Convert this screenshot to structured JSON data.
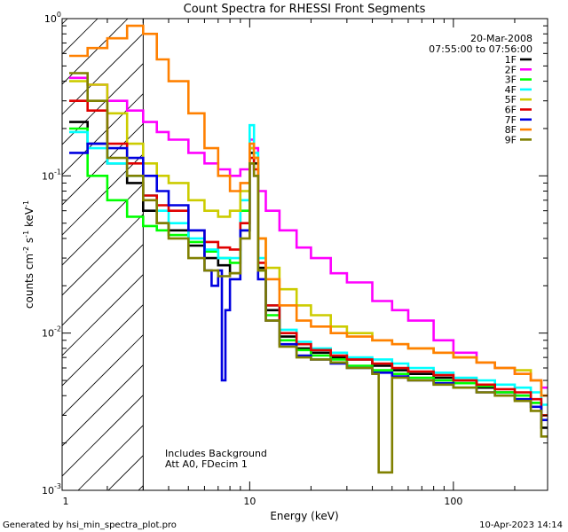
{
  "chart_data": {
    "type": "line",
    "title": "Count Spectra for RHESSI Front Segments",
    "xlabel": "Energy (keV)",
    "ylabel": "counts cm-2 s-1 keV-1",
    "xscale": "log",
    "yscale": "log",
    "xlim": [
      1.2,
      290
    ],
    "ylim": [
      0.001,
      1.0
    ],
    "x_ticks": [
      {
        "value": 1,
        "label": "1"
      },
      {
        "value": 10,
        "label": "10"
      },
      {
        "value": 100,
        "label": "100"
      }
    ],
    "y_ticks": [
      {
        "value": 1,
        "base": "10",
        "exp": "0"
      },
      {
        "value": 0.1,
        "base": "10",
        "exp": "-1"
      },
      {
        "value": 0.01,
        "base": "10",
        "exp": "-2"
      },
      {
        "value": 0.001,
        "base": "10",
        "exp": "-3"
      }
    ],
    "date": "20-Mar-2008",
    "time_range": "07:55:00 to 07:56:00",
    "annotation_lines": [
      "Includes Background",
      "Att A0, FDecim 1"
    ],
    "attenuator_cutoff_kev": 3.0,
    "series": [
      {
        "name": "1F",
        "color": "#000000",
        "x": [
          1.3,
          1.6,
          2.0,
          2.5,
          3.0,
          3.5,
          4.0,
          5.0,
          6.0,
          7.0,
          8.0,
          9.0,
          10.0,
          10.5,
          11.0,
          12.0,
          14.0,
          17.0,
          20.0,
          25.0,
          30.0,
          40.0,
          50.0,
          60.0,
          80.0,
          100.0,
          130.0,
          160.0,
          200.0,
          240.0,
          270.0
        ],
        "y": [
          0.22,
          0.16,
          0.12,
          0.09,
          0.06,
          0.05,
          0.045,
          0.036,
          0.03,
          0.027,
          0.024,
          0.045,
          0.14,
          0.12,
          0.026,
          0.014,
          0.0095,
          0.008,
          0.0075,
          0.007,
          0.0068,
          0.0062,
          0.0058,
          0.0055,
          0.0052,
          0.005,
          0.0045,
          0.0042,
          0.004,
          0.0036,
          0.0025
        ]
      },
      {
        "name": "2F",
        "color": "#ff00ff",
        "x": [
          1.3,
          1.6,
          2.0,
          2.5,
          3.0,
          3.5,
          4.0,
          5.0,
          6.0,
          7.0,
          8.0,
          9.0,
          10.0,
          10.5,
          11.0,
          12.0,
          14.0,
          17.0,
          20.0,
          25.0,
          30.0,
          40.0,
          50.0,
          60.0,
          80.0,
          100.0,
          130.0,
          160.0,
          200.0,
          240.0,
          270.0
        ],
        "y": [
          0.42,
          0.38,
          0.3,
          0.26,
          0.22,
          0.19,
          0.17,
          0.14,
          0.12,
          0.11,
          0.1,
          0.11,
          0.17,
          0.15,
          0.08,
          0.06,
          0.045,
          0.035,
          0.03,
          0.024,
          0.021,
          0.016,
          0.014,
          0.012,
          0.009,
          0.0075,
          0.0065,
          0.006,
          0.0055,
          0.005,
          0.0045
        ]
      },
      {
        "name": "3F",
        "color": "#00ff00",
        "x": [
          1.3,
          1.6,
          2.0,
          2.5,
          3.0,
          3.5,
          4.0,
          5.0,
          6.0,
          7.0,
          8.0,
          9.0,
          10.0,
          10.5,
          11.0,
          12.0,
          14.0,
          17.0,
          20.0,
          25.0,
          30.0,
          40.0,
          50.0,
          60.0,
          80.0,
          100.0,
          130.0,
          160.0,
          200.0,
          240.0,
          270.0
        ],
        "y": [
          0.2,
          0.1,
          0.07,
          0.055,
          0.048,
          0.045,
          0.042,
          0.038,
          0.033,
          0.03,
          0.028,
          0.06,
          0.15,
          0.13,
          0.025,
          0.013,
          0.009,
          0.0078,
          0.0072,
          0.0068,
          0.0062,
          0.0058,
          0.0055,
          0.0052,
          0.005,
          0.0048,
          0.0046,
          0.0042,
          0.004,
          0.0036,
          0.003
        ]
      },
      {
        "name": "4F",
        "color": "#00ffff",
        "x": [
          1.3,
          1.6,
          2.0,
          2.5,
          3.0,
          3.5,
          4.0,
          5.0,
          6.0,
          7.0,
          8.0,
          9.0,
          10.0,
          10.5,
          11.0,
          12.0,
          14.0,
          17.0,
          20.0,
          25.0,
          30.0,
          40.0,
          50.0,
          60.0,
          80.0,
          100.0,
          130.0,
          160.0,
          200.0,
          240.0,
          270.0
        ],
        "y": [
          0.19,
          0.15,
          0.12,
          0.1,
          0.075,
          0.06,
          0.05,
          0.04,
          0.034,
          0.03,
          0.03,
          0.07,
          0.21,
          0.14,
          0.03,
          0.015,
          0.0105,
          0.0088,
          0.008,
          0.0075,
          0.007,
          0.0068,
          0.0064,
          0.006,
          0.0056,
          0.0052,
          0.005,
          0.0047,
          0.0045,
          0.0042,
          0.0035
        ]
      },
      {
        "name": "5F",
        "color": "#cccc00",
        "x": [
          1.3,
          1.6,
          2.0,
          2.5,
          3.0,
          3.5,
          4.0,
          5.0,
          6.0,
          7.0,
          8.0,
          9.0,
          10.0,
          10.5,
          11.0,
          12.0,
          14.0,
          17.0,
          20.0,
          25.0,
          30.0,
          40.0,
          50.0,
          60.0,
          80.0,
          100.0,
          130.0,
          160.0,
          200.0,
          240.0,
          270.0
        ],
        "y": [
          0.4,
          0.38,
          0.25,
          0.16,
          0.12,
          0.1,
          0.09,
          0.07,
          0.06,
          0.055,
          0.06,
          0.08,
          0.15,
          0.13,
          0.04,
          0.026,
          0.019,
          0.015,
          0.013,
          0.011,
          0.01,
          0.009,
          0.0085,
          0.008,
          0.0075,
          0.007,
          0.0065,
          0.006,
          0.0058,
          0.005,
          0.004
        ]
      },
      {
        "name": "6F",
        "color": "#e00000",
        "x": [
          1.3,
          1.6,
          2.0,
          2.5,
          3.0,
          3.5,
          4.0,
          5.0,
          6.0,
          7.0,
          8.0,
          9.0,
          10.0,
          10.5,
          11.0,
          12.0,
          14.0,
          17.0,
          20.0,
          25.0,
          30.0,
          40.0,
          50.0,
          60.0,
          80.0,
          100.0,
          130.0,
          160.0,
          200.0,
          240.0,
          270.0
        ],
        "y": [
          0.3,
          0.26,
          0.16,
          0.12,
          0.075,
          0.065,
          0.06,
          0.045,
          0.038,
          0.035,
          0.034,
          0.05,
          0.13,
          0.11,
          0.028,
          0.015,
          0.01,
          0.0085,
          0.0078,
          0.0072,
          0.0068,
          0.0064,
          0.006,
          0.0057,
          0.0054,
          0.005,
          0.0047,
          0.0044,
          0.0042,
          0.0038,
          0.003
        ]
      },
      {
        "name": "7F",
        "color": "#0000e0",
        "x": [
          1.3,
          1.6,
          2.0,
          2.5,
          3.0,
          3.5,
          4.0,
          5.0,
          6.0,
          6.5,
          7.0,
          7.3,
          7.6,
          8.0,
          9.0,
          10.0,
          10.5,
          11.0,
          12.0,
          14.0,
          17.0,
          20.0,
          25.0,
          30.0,
          40.0,
          50.0,
          60.0,
          80.0,
          100.0,
          130.0,
          160.0,
          200.0,
          240.0,
          270.0
        ],
        "y": [
          0.14,
          0.16,
          0.15,
          0.13,
          0.1,
          0.08,
          0.065,
          0.045,
          0.025,
          0.02,
          0.025,
          0.005,
          0.014,
          0.022,
          0.045,
          0.12,
          0.1,
          0.022,
          0.012,
          0.0085,
          0.0072,
          0.0068,
          0.0064,
          0.006,
          0.0056,
          0.0053,
          0.005,
          0.0048,
          0.0045,
          0.0042,
          0.004,
          0.0038,
          0.0034,
          0.0028
        ]
      },
      {
        "name": "8F",
        "color": "#ff8000",
        "x": [
          1.3,
          1.6,
          2.0,
          2.5,
          3.0,
          3.5,
          4.0,
          5.0,
          6.0,
          7.0,
          8.0,
          9.0,
          10.0,
          10.5,
          11.0,
          12.0,
          14.0,
          17.0,
          20.0,
          25.0,
          30.0,
          40.0,
          50.0,
          60.0,
          80.0,
          100.0,
          130.0,
          160.0,
          200.0,
          240.0,
          270.0
        ],
        "y": [
          0.58,
          0.65,
          0.75,
          0.9,
          0.8,
          0.55,
          0.4,
          0.25,
          0.15,
          0.1,
          0.08,
          0.09,
          0.16,
          0.13,
          0.04,
          0.022,
          0.015,
          0.012,
          0.011,
          0.01,
          0.0095,
          0.009,
          0.0085,
          0.008,
          0.0075,
          0.007,
          0.0065,
          0.006,
          0.0055,
          0.005,
          0.004
        ]
      },
      {
        "name": "9F",
        "color": "#808000",
        "x": [
          1.3,
          1.6,
          2.0,
          2.5,
          3.0,
          3.5,
          4.0,
          5.0,
          6.0,
          7.0,
          8.0,
          9.0,
          10.0,
          10.5,
          11.0,
          12.0,
          14.0,
          17.0,
          20.0,
          25.0,
          30.0,
          40.0,
          43.0,
          50.0,
          60.0,
          80.0,
          100.0,
          130.0,
          160.0,
          200.0,
          240.0,
          270.0
        ],
        "y": [
          0.45,
          0.3,
          0.13,
          0.1,
          0.07,
          0.05,
          0.04,
          0.03,
          0.025,
          0.023,
          0.024,
          0.04,
          0.12,
          0.1,
          0.025,
          0.012,
          0.0082,
          0.007,
          0.0068,
          0.0065,
          0.006,
          0.0055,
          0.0013,
          0.0052,
          0.005,
          0.0047,
          0.0045,
          0.0042,
          0.004,
          0.0037,
          0.0032,
          0.0022
        ]
      }
    ]
  },
  "footer": {
    "left": "Generated by hsi_min_spectra_plot.pro",
    "right": "10-Apr-2023 14:14"
  }
}
